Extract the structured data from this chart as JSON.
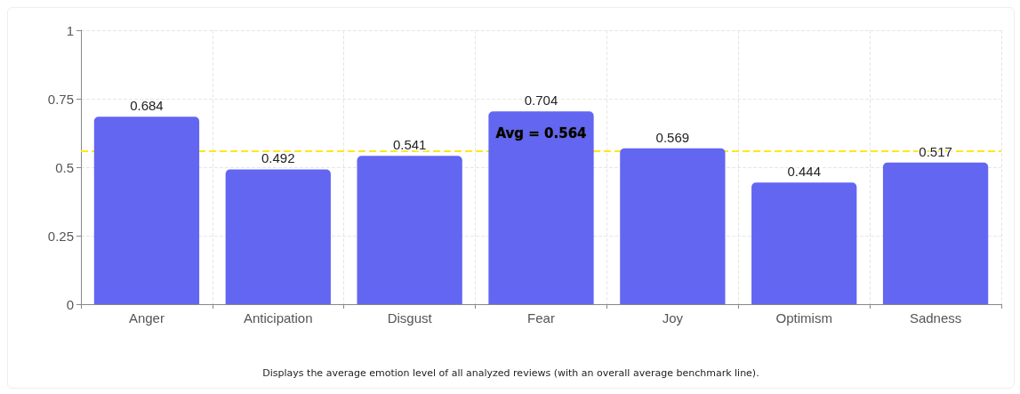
{
  "chart_data": {
    "type": "bar",
    "categories": [
      "Anger",
      "Anticipation",
      "Disgust",
      "Fear",
      "Joy",
      "Optimism",
      "Sadness"
    ],
    "values": [
      0.684,
      0.492,
      0.541,
      0.704,
      0.569,
      0.444,
      0.517
    ],
    "color": "#6366f1",
    "data_labels": true,
    "ylim": [
      0,
      1
    ],
    "yticks": [
      0,
      0.25,
      0.5,
      0.75,
      1
    ],
    "grid": true,
    "ref_lines": [
      {
        "axis": "y",
        "value": 0.564,
        "label": "Avg = 0.564",
        "color": "#ffe81a",
        "line_style": "dashed"
      }
    ],
    "annotations": [
      "Displays the average emotion level of all analyzed reviews (with an overall average benchmark line)."
    ]
  }
}
